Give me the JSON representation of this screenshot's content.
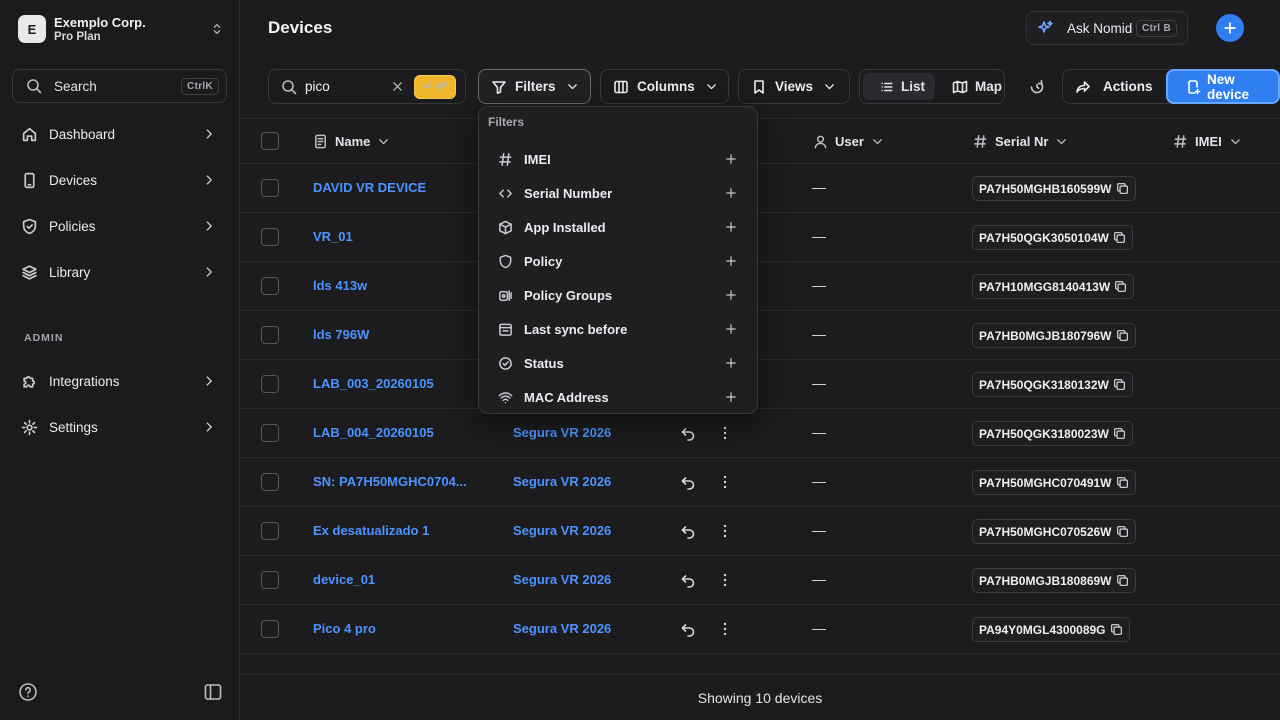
{
  "sidebar": {
    "org": {
      "initial": "E",
      "name": "Exemplo Corp.",
      "plan": "Pro Plan"
    },
    "search": {
      "label": "Search",
      "shortcut": "CtrlK"
    },
    "items": [
      {
        "label": "Dashboard",
        "icon": "home-icon"
      },
      {
        "label": "Devices",
        "icon": "device-icon"
      },
      {
        "label": "Policies",
        "icon": "shield-icon"
      },
      {
        "label": "Library",
        "icon": "layers-icon"
      }
    ],
    "admin_label": "ADMIN",
    "admin_items": [
      {
        "label": "Integrations",
        "icon": "puzzle-icon"
      },
      {
        "label": "Settings",
        "icon": "gear-icon"
      }
    ]
  },
  "header": {
    "title": "Devices",
    "ask": {
      "label": "Ask Nomid",
      "shortcut": "Ctrl B"
    }
  },
  "toolbar": {
    "search_value": "pico",
    "filters_label": "Filters",
    "columns_label": "Columns",
    "views_label": "Views",
    "list_label": "List",
    "map_label": "Map",
    "actions_label": "Actions",
    "new_device_label": "New device"
  },
  "table": {
    "columns": {
      "name": "Name",
      "user": "User",
      "serial": "Serial Nr",
      "imei": "IMEI"
    },
    "rows": [
      {
        "name": "DAVID VR DEVICE",
        "policy": "",
        "user": "—",
        "serial": "PA7H50MGHB160599W"
      },
      {
        "name": "VR_01",
        "policy": "",
        "user": "—",
        "serial": "PA7H50QGK3050104W"
      },
      {
        "name": "lds 413w",
        "policy": "",
        "user": "—",
        "serial": "PA7H10MGG8140413W"
      },
      {
        "name": "lds 796W",
        "policy": "",
        "user": "—",
        "serial": "PA7HB0MGJB180796W"
      },
      {
        "name": "LAB_003_20260105",
        "policy": "",
        "user": "—",
        "serial": "PA7H50QGK3180132W"
      },
      {
        "name": "LAB_004_20260105",
        "policy": "Segura VR 2026",
        "user": "—",
        "serial": "PA7H50QGK3180023W"
      },
      {
        "name": "SN: PA7H50MGHC0704...",
        "policy": "Segura VR 2026",
        "user": "—",
        "serial": "PA7H50MGHC070491W"
      },
      {
        "name": "Ex desatualizado 1",
        "policy": "Segura VR 2026",
        "user": "—",
        "serial": "PA7H50MGHC070526W"
      },
      {
        "name": "device_01",
        "policy": "Segura VR 2026",
        "user": "—",
        "serial": "PA7HB0MGJB180869W"
      },
      {
        "name": "Pico 4 pro",
        "policy": "Segura VR 2026",
        "user": "—",
        "serial": "PA94Y0MGL4300089G"
      }
    ],
    "footer": "Showing 10 devices"
  },
  "filters_dropdown": {
    "title": "Filters",
    "items": [
      {
        "label": "IMEI",
        "icon": "hash-icon"
      },
      {
        "label": "Serial Number",
        "icon": "code-icon"
      },
      {
        "label": "App Installed",
        "icon": "package-icon"
      },
      {
        "label": "Policy",
        "icon": "shield-icon"
      },
      {
        "label": "Policy Groups",
        "icon": "policy-groups-icon"
      },
      {
        "label": "Last sync before",
        "icon": "calendar-icon"
      },
      {
        "label": "Status",
        "icon": "check-circle-icon"
      },
      {
        "label": "MAC Address",
        "icon": "wifi-icon"
      }
    ]
  },
  "colors": {
    "accent": "#2f7ff1",
    "link": "#4c93ff",
    "ai": "#f0b429",
    "bg": "#1c1c1e"
  }
}
